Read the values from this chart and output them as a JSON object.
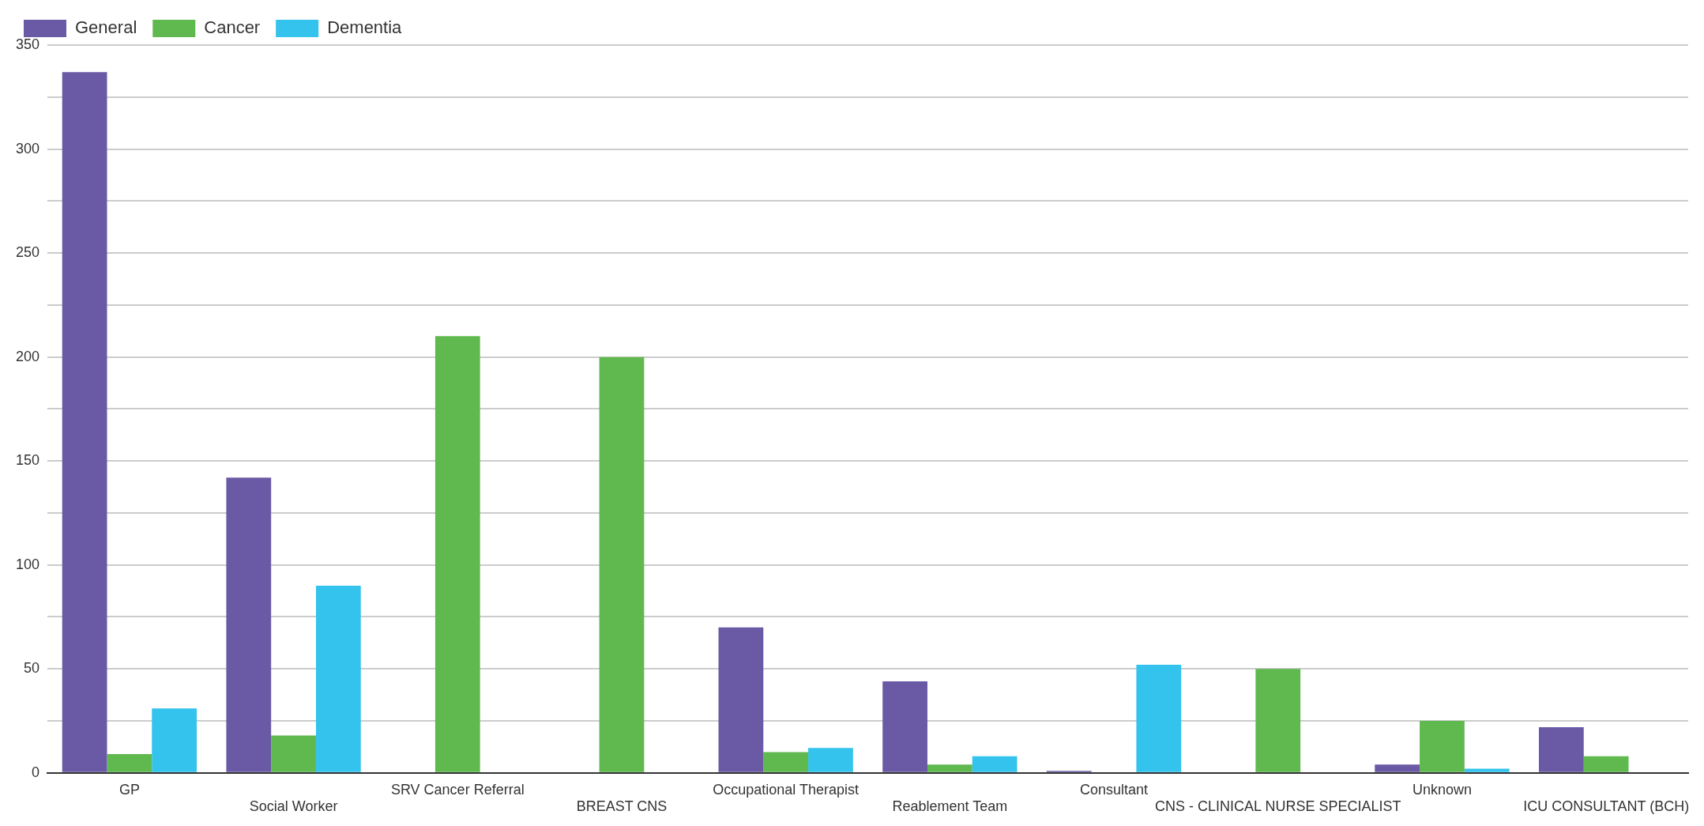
{
  "chart_data": {
    "type": "bar",
    "categories": [
      "GP",
      "Social Worker",
      "SRV Cancer Referral",
      "BREAST CNS",
      "Occupational Therapist",
      "Reablement Team",
      "Consultant",
      "CNS - CLINICAL NURSE SPECIALIST",
      "Unknown",
      "ICU CONSULTANT (BCH)"
    ],
    "series": [
      {
        "name": "General",
        "color": "#6a5aa6",
        "values": [
          337,
          142,
          null,
          null,
          70,
          44,
          1,
          null,
          4,
          22
        ]
      },
      {
        "name": "Cancer",
        "color": "#5fb94f",
        "values": [
          9,
          18,
          210,
          200,
          10,
          4,
          null,
          50,
          25,
          8
        ]
      },
      {
        "name": "Dementia",
        "color": "#33c3ec",
        "values": [
          31,
          90,
          null,
          null,
          12,
          8,
          52,
          null,
          2,
          null
        ]
      }
    ],
    "ylim": [
      0,
      350
    ],
    "yticks": [
      0,
      {
        "value": 25,
        "label": null
      },
      50,
      {
        "value": 75,
        "label": null
      },
      100,
      {
        "value": 125,
        "label": null
      },
      150,
      {
        "value": 175,
        "label": null
      },
      200,
      {
        "value": 225,
        "label": null
      },
      250,
      {
        "value": 275,
        "label": null
      },
      300,
      {
        "value": 325,
        "label": null
      },
      350
    ],
    "grid": "y",
    "legend": "top left"
  }
}
